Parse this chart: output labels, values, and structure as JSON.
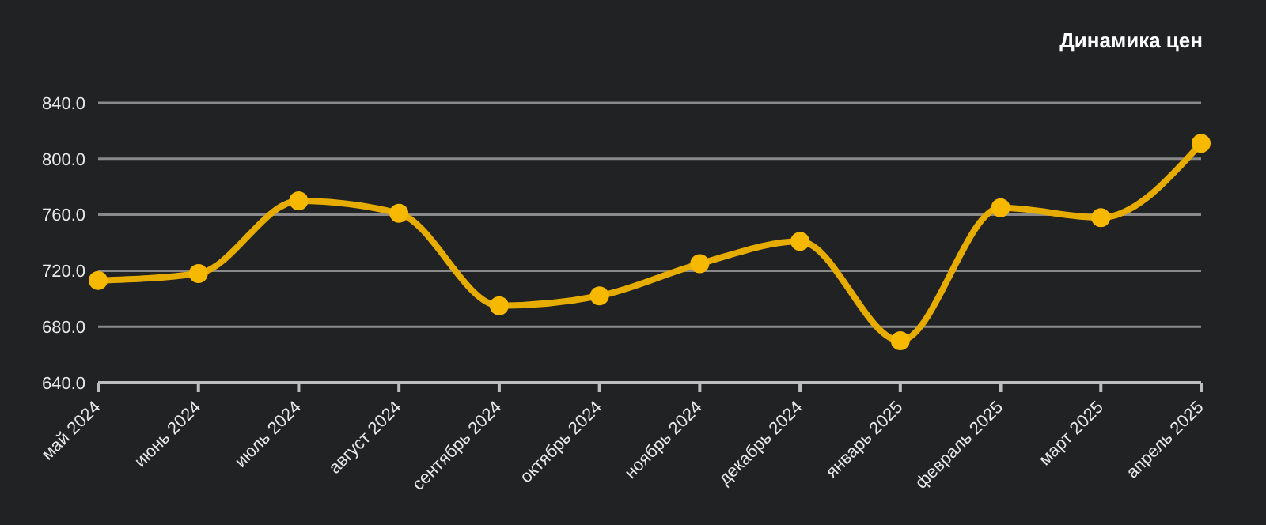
{
  "chart_data": {
    "type": "line",
    "title": "Динамика цен",
    "categories": [
      "май 2024",
      "июнь 2024",
      "июль 2024",
      "август 2024",
      "сентябрь 2024",
      "октябрь 2024",
      "ноябрь 2024",
      "декабрь 2024",
      "январь 2025",
      "февраль 2025",
      "март 2025",
      "апрель 2025"
    ],
    "series": [
      {
        "color": "#e6ac00",
        "values": [
          713,
          718,
          770,
          761,
          695,
          702,
          725,
          741,
          670,
          765,
          758,
          811
        ]
      }
    ],
    "ylim": [
      640,
      840
    ],
    "yticks": [
      {
        "value": 640,
        "label": "640.0"
      },
      {
        "value": 680,
        "label": "680.0"
      },
      {
        "value": 720,
        "label": "720.0"
      },
      {
        "value": 760,
        "label": "760.0"
      },
      {
        "value": 800,
        "label": "800.0"
      },
      {
        "value": 840,
        "label": "840.0"
      }
    ],
    "grid": "y",
    "marker": "circle",
    "line_style": "solid"
  }
}
